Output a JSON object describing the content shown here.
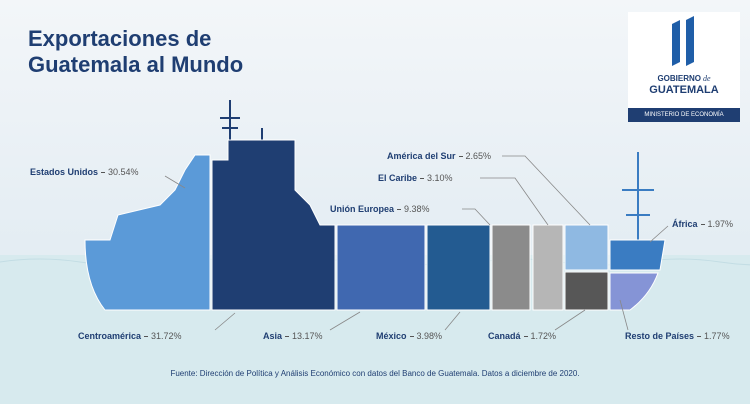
{
  "chart_data": {
    "type": "ship",
    "title": "Exportaciones de Guatemala al Mundo",
    "categories": [
      "Estados Unidos",
      "Centroamérica",
      "Asia",
      "México",
      "Unión Europea",
      "El Caribe",
      "América del Sur",
      "Canadá",
      "África",
      "Resto de Países"
    ],
    "values": [
      30.54,
      31.72,
      13.17,
      3.98,
      9.38,
      3.1,
      2.65,
      1.72,
      1.97,
      1.77
    ],
    "value_labels": [
      "30.54%",
      "31.72%",
      "13.17%",
      "3.98%",
      "9.38%",
      "3.10%",
      "2.65%",
      "1.72%",
      "1.97%",
      "1.77%"
    ],
    "colors": [
      "#5b9ad8",
      "#1f3e72",
      "#4068b0",
      "#235b91",
      "#8b8b8b",
      "#b6b6b6",
      "#8fb9e2",
      "#575757",
      "#3a7cc2",
      "#8594d6"
    ],
    "source": "Fuente: Dirección de Política y Análisis Económico con datos del Banco de Guatemala. Datos a diciembre de 2020."
  },
  "logo": {
    "top": "GOBIERNO",
    "script": "de",
    "name": "GUATEMALA",
    "ministry": "MINISTERIO DE ECONOMÍA"
  }
}
